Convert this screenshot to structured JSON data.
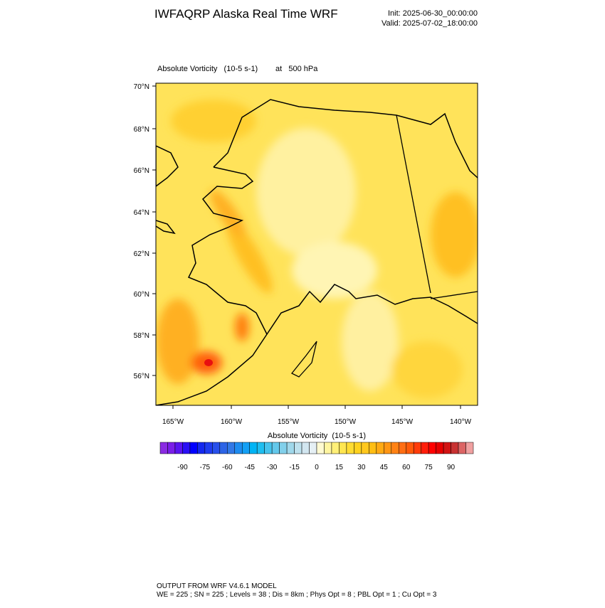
{
  "header": {
    "title": "IWFAQRP Alaska Real Time WRF",
    "init": "Init: 2025-06-30_00:00:00",
    "valid": "Valid: 2025-07-02_18:00:00"
  },
  "plot": {
    "field": "Absolute Vorticity   (10-5 s-1)",
    "level": "at   500 hPa",
    "lat_labels": [
      "70°N",
      "68°N",
      "66°N",
      "64°N",
      "62°N",
      "60°N",
      "58°N",
      "56°N"
    ],
    "lon_labels": [
      "165°W",
      "160°W",
      "155°W",
      "150°W",
      "145°W",
      "140°W"
    ]
  },
  "colorbar": {
    "title": "Absolute Vorticity  (10-5 s-1)",
    "labels": [
      "-90",
      "-75",
      "-60",
      "-45",
      "-30",
      "-15",
      "0",
      "15",
      "30",
      "45",
      "60",
      "75",
      "90"
    ],
    "colors": [
      "#8a2be2",
      "#7a1ee8",
      "#5a14f0",
      "#2a0ff5",
      "#0000ff",
      "#1428f0",
      "#1f3cf0",
      "#2850eb",
      "#2d64e6",
      "#3278e6",
      "#1e8cf0",
      "#14a0f5",
      "#00b4f5",
      "#1ebef0",
      "#46c3ed",
      "#64c8eb",
      "#82d0eb",
      "#a0d8eb",
      "#bee1ee",
      "#d2e6f0",
      "#e6f0f5",
      "#fffad2",
      "#fff5a0",
      "#fff078",
      "#ffe650",
      "#ffdc32",
      "#ffd21e",
      "#ffc81e",
      "#ffbe14",
      "#ffaa14",
      "#ff9614",
      "#ff8214",
      "#ff6e14",
      "#ff5a0a",
      "#ff3c0a",
      "#ff1e0a",
      "#ff0000",
      "#e60000",
      "#d21414",
      "#c83232",
      "#dc6464",
      "#f0a0a0"
    ]
  },
  "footer": {
    "line1": "OUTPUT FROM WRF V4.6.1 MODEL",
    "line2": "WE = 225 ; SN = 225 ; Levels = 38 ; Dis = 8km ; Phys Opt = 8 ; PBL Opt = 1 ; Cu Opt = 3"
  }
}
